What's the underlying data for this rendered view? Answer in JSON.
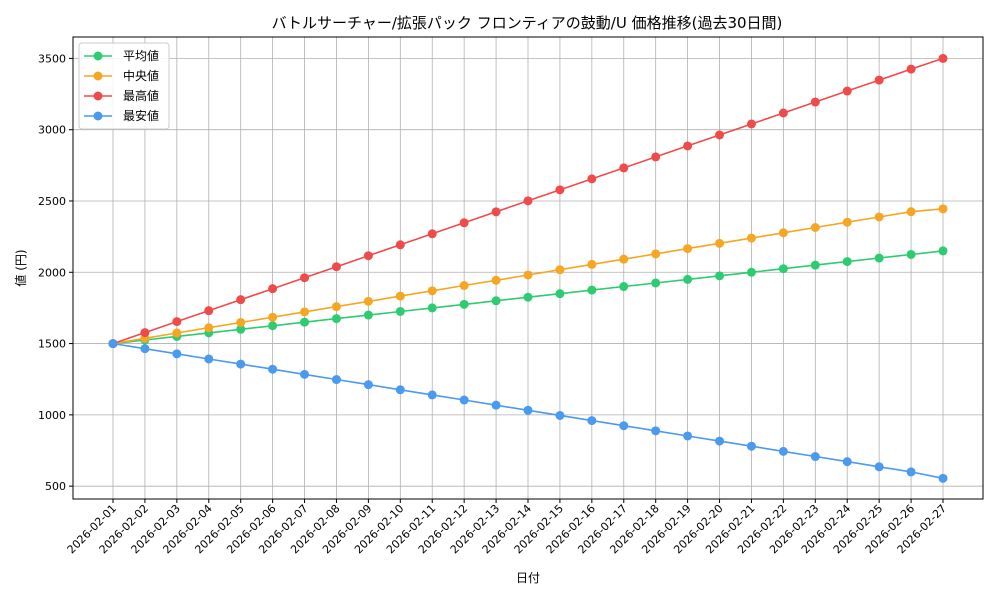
{
  "chart_data": {
    "type": "line",
    "title": "バトルサーチャー/拡張パック フロンティアの鼓動/U 価格推移(過去30日間)",
    "xlabel": "日付",
    "ylabel": "値 (円)",
    "categories": [
      "2026-02-01",
      "2026-02-02",
      "2026-02-03",
      "2026-02-04",
      "2026-02-05",
      "2026-02-06",
      "2026-02-07",
      "2026-02-08",
      "2026-02-09",
      "2026-02-10",
      "2026-02-11",
      "2026-02-12",
      "2026-02-13",
      "2026-02-14",
      "2026-02-15",
      "2026-02-16",
      "2026-02-17",
      "2026-02-18",
      "2026-02-19",
      "2026-02-20",
      "2026-02-21",
      "2026-02-22",
      "2026-02-23",
      "2026-02-24",
      "2026-02-25",
      "2026-02-26",
      "2026-02-27"
    ],
    "yticks": [
      500,
      1000,
      1500,
      2000,
      2500,
      3000,
      3500
    ],
    "ylim": [
      410,
      3650
    ],
    "grid": true,
    "legend_position": "top-left",
    "series": [
      {
        "name": "平均値",
        "color": "#2ecc71",
        "values": [
          1500,
          1525,
          1550,
          1575,
          1600,
          1625,
          1650,
          1675,
          1700,
          1725,
          1750,
          1775,
          1800,
          1825,
          1850,
          1875,
          1900,
          1925,
          1950,
          1975,
          2000,
          2025,
          2050,
          2075,
          2100,
          2125,
          2150
        ]
      },
      {
        "name": "中央値",
        "color": "#f5a623",
        "values": [
          1500,
          1537,
          1574,
          1611,
          1648,
          1685,
          1722,
          1759,
          1796,
          1833,
          1870,
          1907,
          1944,
          1981,
          2018,
          2055,
          2092,
          2129,
          2166,
          2203,
          2240,
          2277,
          2314,
          2351,
          2388,
          2425,
          2445
        ]
      },
      {
        "name": "最高値",
        "color": "#f04b4b",
        "values": [
          1500,
          1577,
          1654,
          1731,
          1808,
          1885,
          1962,
          2039,
          2116,
          2193,
          2270,
          2347,
          2424,
          2501,
          2578,
          2655,
          2732,
          2809,
          2886,
          2963,
          3040,
          3117,
          3194,
          3271,
          3348,
          3425,
          3500
        ]
      },
      {
        "name": "最安値",
        "color": "#4a9af0",
        "values": [
          1500,
          1464,
          1428,
          1392,
          1356,
          1320,
          1284,
          1248,
          1212,
          1176,
          1140,
          1104,
          1068,
          1032,
          996,
          960,
          924,
          888,
          852,
          816,
          780,
          744,
          708,
          672,
          636,
          600,
          555
        ]
      }
    ]
  }
}
